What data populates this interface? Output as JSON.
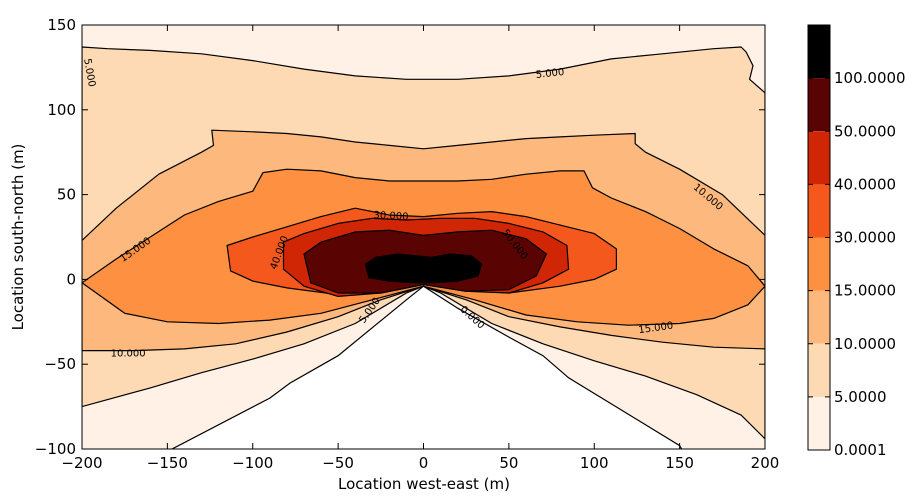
{
  "chart_data": {
    "type": "contour",
    "xlabel": "Location west-east (m)",
    "ylabel": "Location south-north (m)",
    "xlim": [
      -200,
      200
    ],
    "ylim": [
      -100,
      150
    ],
    "x_ticks": [
      "−200",
      "−150",
      "−100",
      "−50",
      "0",
      "50",
      "100",
      "150",
      "200"
    ],
    "y_ticks": [
      "−100",
      "−50",
      "0",
      "50",
      "100",
      "150"
    ],
    "x_tick_values": [
      -200,
      -150,
      -100,
      -50,
      0,
      50,
      100,
      150,
      200
    ],
    "y_tick_values": [
      -100,
      -50,
      0,
      50,
      100,
      150
    ],
    "levels": [
      0.0001,
      5,
      10,
      15,
      30,
      40,
      50,
      100
    ],
    "colorbar_labels": [
      "0.0001",
      "5.0000",
      "10.0000",
      "15.0000",
      "30.0000",
      "40.0000",
      "50.0000",
      "100.0000"
    ],
    "colors": [
      "#fff1e5",
      "#fdd9b4",
      "#fdb97d",
      "#fd9141",
      "#f5581c",
      "#d02605",
      "#5a0303",
      "#000000"
    ],
    "contour_labels": [
      {
        "text": "5.000",
        "x": -195,
        "y": 122,
        "rotate": 80
      },
      {
        "text": "5.000",
        "x": 74,
        "y": 122,
        "rotate": -6
      },
      {
        "text": "10.000",
        "x": 167,
        "y": 49,
        "rotate": 40
      },
      {
        "text": "15.000",
        "x": -169,
        "y": 18,
        "rotate": -35
      },
      {
        "text": "15.000",
        "x": 136,
        "y": -28,
        "rotate": -8
      },
      {
        "text": "10.000",
        "x": -173,
        "y": -43,
        "rotate": 0
      },
      {
        "text": "30.000",
        "x": -19,
        "y": 38,
        "rotate": 3
      },
      {
        "text": "40.000",
        "x": -85,
        "y": 16,
        "rotate": -70
      },
      {
        "text": "50.000",
        "x": 54,
        "y": 21,
        "rotate": 52
      },
      {
        "text": "5.000",
        "x": -32,
        "y": -18,
        "rotate": -55
      },
      {
        "text": "0.000",
        "x": 29,
        "y": -22,
        "rotate": 42
      }
    ],
    "contours": [
      {
        "level": 5,
        "points": [
          [
            -200,
            137
          ],
          [
            -185,
            136
          ],
          [
            -160,
            135
          ],
          [
            -130,
            133
          ],
          [
            -100,
            129
          ],
          [
            -70,
            124
          ],
          [
            -40,
            120
          ],
          [
            -10,
            118
          ],
          [
            20,
            118
          ],
          [
            50,
            120
          ],
          [
            80,
            124
          ],
          [
            110,
            130
          ],
          [
            140,
            133
          ],
          [
            170,
            136
          ],
          [
            186,
            137
          ],
          [
            189,
            134
          ],
          [
            193,
            126
          ],
          [
            191,
            118
          ],
          [
            200,
            110
          ],
          [
            200,
            -94
          ],
          [
            186,
            -80
          ],
          [
            160,
            -68
          ],
          [
            130,
            -57
          ],
          [
            100,
            -48
          ],
          [
            70,
            -38
          ],
          [
            40,
            -26
          ],
          [
            10,
            -8
          ],
          [
            0,
            -4
          ],
          [
            -10,
            -8
          ],
          [
            -40,
            -26
          ],
          [
            -70,
            -38
          ],
          [
            -100,
            -47
          ],
          [
            -130,
            -55
          ],
          [
            -160,
            -64
          ],
          [
            -200,
            -75
          ]
        ]
      },
      {
        "level": 10,
        "points": [
          [
            -200,
            23
          ],
          [
            -180,
            42
          ],
          [
            -155,
            62
          ],
          [
            -130,
            75
          ],
          [
            -123,
            79
          ],
          [
            -124,
            88
          ],
          [
            -100,
            87
          ],
          [
            -80,
            86
          ],
          [
            -60,
            84
          ],
          [
            -40,
            81
          ],
          [
            -20,
            79
          ],
          [
            0,
            77
          ],
          [
            20,
            79
          ],
          [
            40,
            81
          ],
          [
            60,
            83
          ],
          [
            80,
            84
          ],
          [
            100,
            85
          ],
          [
            124,
            86
          ],
          [
            124,
            80
          ],
          [
            130,
            75
          ],
          [
            150,
            65
          ],
          [
            175,
            50
          ],
          [
            200,
            26
          ],
          [
            200,
            -41
          ],
          [
            170,
            -40
          ],
          [
            140,
            -37
          ],
          [
            110,
            -33
          ],
          [
            80,
            -28
          ],
          [
            50,
            -22
          ],
          [
            25,
            -12
          ],
          [
            0,
            -4
          ],
          [
            -25,
            -12
          ],
          [
            -50,
            -22
          ],
          [
            -80,
            -31
          ],
          [
            -110,
            -38
          ],
          [
            -140,
            -41
          ],
          [
            -170,
            -42
          ],
          [
            -200,
            -42
          ]
        ]
      },
      {
        "level": 15,
        "points": [
          [
            -200,
            -2
          ],
          [
            -180,
            12
          ],
          [
            -160,
            25
          ],
          [
            -140,
            38
          ],
          [
            -120,
            46
          ],
          [
            -100,
            52
          ],
          [
            -94,
            63
          ],
          [
            -80,
            65
          ],
          [
            -60,
            64
          ],
          [
            -40,
            60
          ],
          [
            -20,
            58
          ],
          [
            0,
            58
          ],
          [
            20,
            58
          ],
          [
            40,
            59
          ],
          [
            60,
            62
          ],
          [
            80,
            64
          ],
          [
            94,
            64
          ],
          [
            99,
            54
          ],
          [
            110,
            48
          ],
          [
            130,
            40
          ],
          [
            150,
            30
          ],
          [
            170,
            18
          ],
          [
            190,
            8
          ],
          [
            200,
            -4
          ],
          [
            190,
            -15
          ],
          [
            170,
            -23
          ],
          [
            150,
            -26
          ],
          [
            120,
            -27
          ],
          [
            90,
            -25
          ],
          [
            60,
            -21
          ],
          [
            30,
            -12
          ],
          [
            0,
            -4
          ],
          [
            -30,
            -12
          ],
          [
            -60,
            -20
          ],
          [
            -90,
            -24
          ],
          [
            -120,
            -26
          ],
          [
            -150,
            -25
          ],
          [
            -175,
            -20
          ],
          [
            -200,
            -2
          ]
        ]
      },
      {
        "level": 30,
        "points": [
          [
            -115,
            20
          ],
          [
            -100,
            25
          ],
          [
            -80,
            31
          ],
          [
            -60,
            37
          ],
          [
            -40,
            42
          ],
          [
            -20,
            38
          ],
          [
            0,
            37
          ],
          [
            20,
            39
          ],
          [
            40,
            40
          ],
          [
            60,
            37
          ],
          [
            80,
            32
          ],
          [
            100,
            27
          ],
          [
            113,
            18
          ],
          [
            113,
            6
          ],
          [
            100,
            0
          ],
          [
            80,
            -4
          ],
          [
            50,
            -8
          ],
          [
            25,
            -6
          ],
          [
            0,
            -3
          ],
          [
            -25,
            -7
          ],
          [
            -50,
            -9
          ],
          [
            -80,
            -5
          ],
          [
            -100,
            -1
          ],
          [
            -113,
            5
          ],
          [
            -115,
            20
          ]
        ]
      },
      {
        "level": 40,
        "points": [
          [
            -82,
            22
          ],
          [
            -70,
            27
          ],
          [
            -50,
            33
          ],
          [
            -30,
            36
          ],
          [
            -10,
            35
          ],
          [
            10,
            36
          ],
          [
            30,
            36
          ],
          [
            50,
            33
          ],
          [
            70,
            28
          ],
          [
            84,
            20
          ],
          [
            85,
            6
          ],
          [
            70,
            -2
          ],
          [
            50,
            -8
          ],
          [
            25,
            -7
          ],
          [
            0,
            -3
          ],
          [
            -25,
            -8
          ],
          [
            -50,
            -10
          ],
          [
            -70,
            -4
          ],
          [
            -82,
            6
          ],
          [
            -82,
            22
          ]
        ]
      },
      {
        "level": 50,
        "points": [
          [
            -70,
            15
          ],
          [
            -60,
            22
          ],
          [
            -40,
            28
          ],
          [
            -20,
            29
          ],
          [
            0,
            26
          ],
          [
            20,
            28
          ],
          [
            40,
            29
          ],
          [
            60,
            24
          ],
          [
            72,
            15
          ],
          [
            66,
            2
          ],
          [
            50,
            -6
          ],
          [
            25,
            -7
          ],
          [
            0,
            -3
          ],
          [
            -25,
            -8
          ],
          [
            -50,
            -8
          ],
          [
            -66,
            -2
          ],
          [
            -70,
            15
          ]
        ]
      },
      {
        "level": 100,
        "points": [
          [
            -34,
            9
          ],
          [
            -28,
            13
          ],
          [
            -15,
            15
          ],
          [
            -5,
            14
          ],
          [
            5,
            13
          ],
          [
            15,
            15
          ],
          [
            28,
            14
          ],
          [
            34,
            9
          ],
          [
            32,
            2
          ],
          [
            20,
            -1
          ],
          [
            5,
            -2
          ],
          [
            -5,
            -2
          ],
          [
            -20,
            -1
          ],
          [
            -32,
            1
          ],
          [
            -34,
            9
          ]
        ]
      }
    ],
    "blank_wedge": [
      [
        0,
        -4
      ],
      [
        -10,
        -12
      ],
      [
        -50,
        -45
      ],
      [
        -78,
        -61
      ],
      [
        -90,
        -70
      ],
      [
        -153,
        -103
      ],
      [
        153,
        -103
      ],
      [
        150,
        -98
      ],
      [
        85,
        -58
      ],
      [
        70,
        -45
      ],
      [
        50,
        -34
      ],
      [
        20,
        -17
      ],
      [
        0,
        -4
      ]
    ]
  }
}
